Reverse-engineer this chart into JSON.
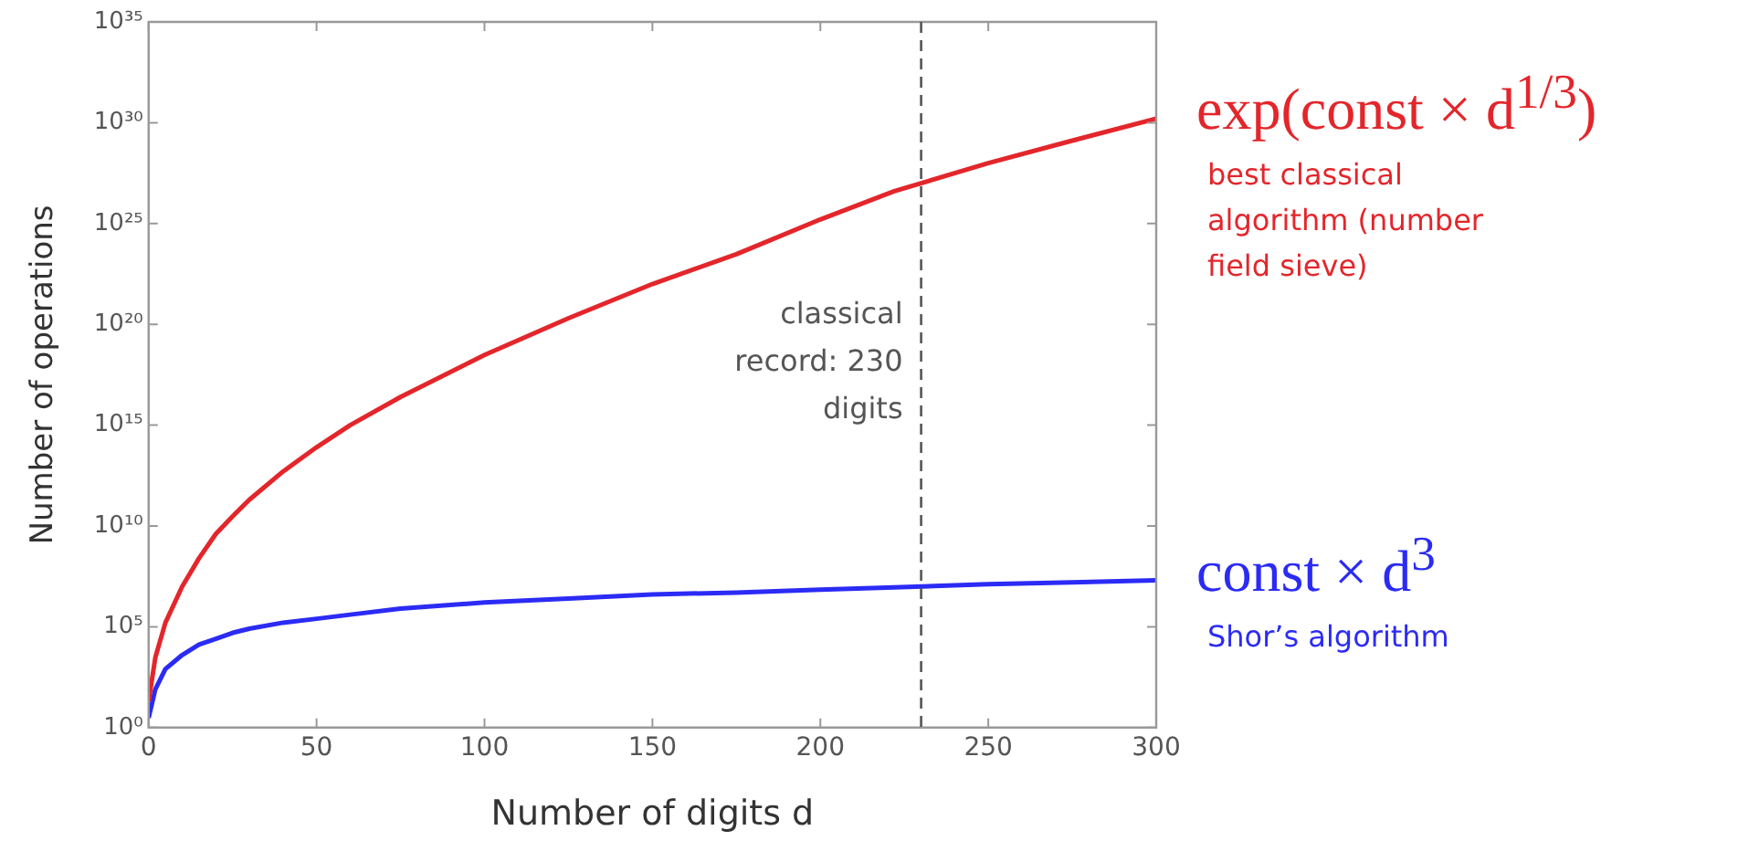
{
  "chart_data": {
    "type": "line",
    "xlabel": "Number of digits d",
    "ylabel": "Number of operations",
    "x": [
      0,
      2,
      5,
      10,
      15,
      20,
      25,
      30,
      40,
      50,
      60,
      75,
      100,
      125,
      150,
      175,
      200,
      222,
      250,
      275,
      300
    ],
    "series": [
      {
        "name": "exp(const × d$^{1/3}$)",
        "color": "#e3262b",
        "values": [
          20,
          3000.0,
          160000.0,
          10000000.0,
          250000000.0,
          4000000000.0,
          30000000000.0,
          200000000000.0,
          5000000000000.0,
          80000000000000.0,
          1000000000000000.0,
          2.5e+16,
          3e+18,
          2e+20,
          1e+22,
          3e+23,
          1.6e+25,
          4e+26,
          1e+28,
          1.3e+29,
          1.6e+30
        ]
      },
      {
        "name": "const × d$^{3}$",
        "color": "#2b2bf5",
        "values": [
          3,
          80,
          800,
          4000.0,
          13000.0,
          25000.0,
          50000.0,
          80000.0,
          160000.0,
          250000.0,
          400000.0,
          800000.0,
          1600000.0,
          2500000.0,
          4000000.0,
          5000000.0,
          7000000.0,
          9000000.0,
          13000000.0,
          16000000.0,
          20000000.0
        ]
      }
    ],
    "annotations": [
      "best classical algorithm (number field sieve)",
      "Shor’s algorithm"
    ],
    "ref_lines": [
      {
        "axis": "x",
        "value": 230,
        "label": "classical record: 230 digits",
        "color": "#555555",
        "line_style": "dashed"
      }
    ],
    "log": "y",
    "xlim": [
      0,
      300
    ],
    "xticks": [
      0,
      50,
      100,
      150,
      200,
      250,
      300
    ],
    "ylim": [
      1,
      1e+35
    ],
    "yticks": [
      {
        "value": 1,
        "label": "10⁰"
      },
      {
        "value": 100000.0,
        "label": "10⁵"
      },
      {
        "value": 10000000000.0,
        "label": "10¹⁰"
      },
      {
        "value": 1000000000000000.0,
        "label": "10¹⁵"
      },
      {
        "value": 1e+20,
        "label": "10²⁰"
      },
      {
        "value": 1e+25,
        "label": "10²⁵"
      },
      {
        "value": 1e+30,
        "label": "10³⁰"
      },
      {
        "value": 1e+35,
        "label": "10³⁵"
      }
    ],
    "grid": false,
    "legend": false,
    "marker": "none",
    "line_style": "solid"
  }
}
